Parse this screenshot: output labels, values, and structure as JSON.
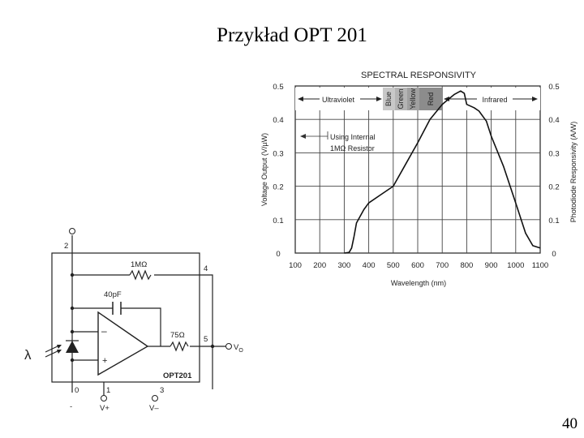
{
  "slide": {
    "title": "Przykład OPT 201",
    "page_number": "40"
  },
  "chart_data": {
    "type": "line",
    "title": "SPECTRAL RESPONSIVITY",
    "xlabel": "Wavelength (nm)",
    "ylabel": "Voltage Output (V/µW)",
    "ylabel_right": "Photodiode Responsivity (A/W)",
    "xlim": [
      100,
      1100
    ],
    "ylim": [
      0,
      0.5
    ],
    "grid": true,
    "x_ticks": [
      "100",
      "200",
      "300",
      "400",
      "500",
      "600",
      "700",
      "800",
      "900",
      "1000",
      "1100"
    ],
    "y_ticks": [
      "0",
      "0.1",
      "0.2",
      "0.3",
      "0.4",
      "0.5"
    ],
    "bands": [
      {
        "label": "Ultraviolet"
      },
      {
        "label": "Blue"
      },
      {
        "label": "Green"
      },
      {
        "label": "Yellow"
      },
      {
        "label": "Red"
      },
      {
        "label": "Infrared"
      }
    ],
    "annotation": [
      "Using Internal",
      "1MΩ Resistor"
    ],
    "series": [
      {
        "x": [
          300,
          320,
          330,
          340,
          350,
          380,
          400,
          450,
          500,
          550,
          600,
          650,
          700,
          750,
          775,
          790,
          800,
          830,
          850,
          880,
          900,
          950,
          1000,
          1040,
          1070,
          1100
        ],
        "y": [
          0,
          0.002,
          0.015,
          0.05,
          0.09,
          0.13,
          0.15,
          0.175,
          0.2,
          0.265,
          0.33,
          0.4,
          0.445,
          0.475,
          0.485,
          0.478,
          0.445,
          0.435,
          0.425,
          0.395,
          0.35,
          0.26,
          0.15,
          0.06,
          0.022,
          0.015
        ]
      }
    ]
  },
  "circuit": {
    "feedback_resistor": "1MΩ",
    "feedback_capacitor": "40pF",
    "output_resistor": "75Ω",
    "chip": "OPT201",
    "lambda": "λ",
    "pins": {
      "p0": "0",
      "p1": "1",
      "p2": "2",
      "p3": "3",
      "p4": "4",
      "p5": "5"
    },
    "output_label": "V",
    "output_sub": "O",
    "vplus": "V+",
    "vminus": "V–",
    "minus_sign": "–",
    "plus_sign": "+",
    "pin0_sign": "-"
  }
}
